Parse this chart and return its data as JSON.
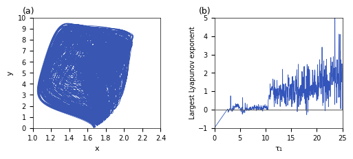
{
  "panel_a": {
    "label": "(a)",
    "xlabel": "x",
    "ylabel": "y",
    "xlim": [
      1.0,
      2.4
    ],
    "ylim": [
      0,
      10
    ],
    "xticks": [
      1.0,
      1.2,
      1.4,
      1.6,
      1.8,
      2.0,
      2.2,
      2.4
    ],
    "yticks": [
      0,
      1,
      2,
      3,
      4,
      5,
      6,
      7,
      8,
      9,
      10
    ],
    "line_color": "#2244aa",
    "line_width": 0.5
  },
  "panel_b": {
    "label": "(b)",
    "xlabel": "τ₁",
    "ylabel": "Largest Lyapunov exponent",
    "xlim": [
      0,
      25
    ],
    "ylim": [
      -1,
      5
    ],
    "xticks": [
      0,
      5,
      10,
      15,
      20,
      25
    ],
    "yticks": [
      -1,
      0,
      1,
      2,
      3,
      4,
      5
    ],
    "line_color": "#3355bb",
    "hline_color": "#666666",
    "line_width": 0.6
  },
  "figure_bg": "#ffffff",
  "font_size": 7
}
